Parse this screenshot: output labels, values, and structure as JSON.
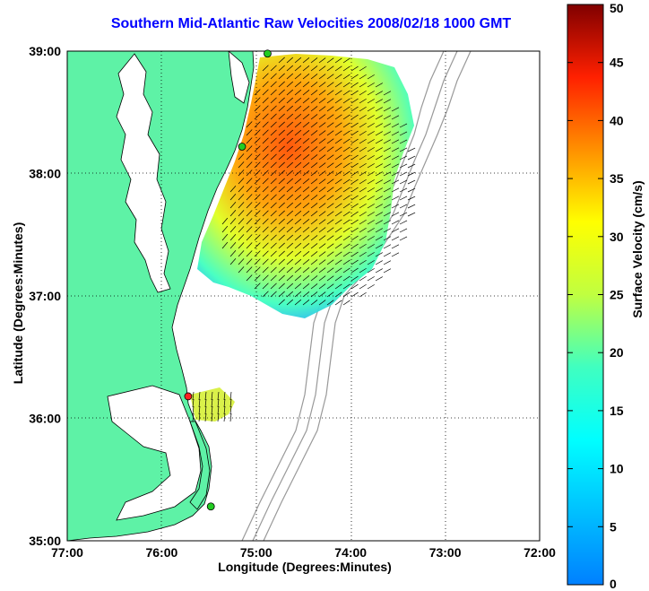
{
  "title": "Southern Mid-Atlantic Raw Velocities 2008/02/18 1000 GMT",
  "x_axis": {
    "label": "Longitude (Degrees:Minutes)",
    "ticks": [
      "77:00",
      "76:00",
      "75:00",
      "74:00",
      "73:00",
      "72:00"
    ],
    "range": [
      -77,
      -72
    ]
  },
  "y_axis": {
    "label": "Latitude (Degrees:Minutes)",
    "ticks": [
      "39:00",
      "38:00",
      "37:00",
      "36:00",
      "35:00"
    ],
    "range": [
      35,
      39
    ]
  },
  "colorbar": {
    "label": "Surface Velocity (cm/s)",
    "ticks": [
      "0",
      "5",
      "10",
      "15",
      "20",
      "25",
      "30",
      "35",
      "40",
      "45",
      "50"
    ],
    "range": [
      0,
      50
    ],
    "colormap": "jet"
  },
  "colors": {
    "land": "#5ef2a6",
    "water": "#ffffff",
    "bathymetry": "#999999",
    "title": "#0000ff",
    "grid": "#000000"
  },
  "stations": [
    {
      "lon": -74.88,
      "lat": 38.98,
      "color": "#22cc22"
    },
    {
      "lon": -75.15,
      "lat": 38.22,
      "color": "#22cc22"
    },
    {
      "lon": -75.72,
      "lat": 36.18,
      "color": "#ff2222"
    },
    {
      "lon": -75.48,
      "lat": 35.28,
      "color": "#22cc22"
    }
  ]
}
